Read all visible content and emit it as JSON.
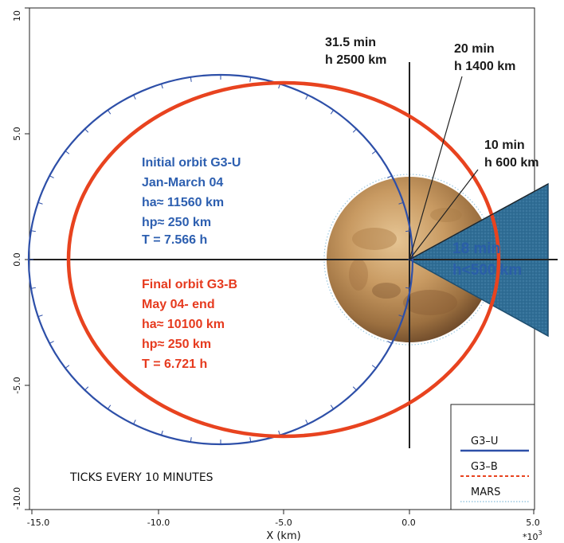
{
  "axis": {
    "x_label": "X (km)",
    "x_multiplier": "*10",
    "x_multiplier_exp": "3",
    "x_ticks": [
      "-15.0",
      "-10.0",
      "-5.0",
      "0.0",
      "5.0"
    ],
    "y_ticks": [
      "10",
      "5.0",
      "0.0",
      "-5.0",
      "-10.0"
    ]
  },
  "annotations": {
    "a31_line1": "31.5 min",
    "a31_line2": "h 2500 km",
    "a20_line1": "20 min",
    "a20_line2": "h 1400 km",
    "a10_line1": "10 min",
    "a10_line2": "h 600 km",
    "cone_line1": "18 min",
    "cone_line2": "h<500 km"
  },
  "initial_orbit": {
    "line1": "Initial orbit G3-U",
    "line2": "Jan-March 04",
    "line3": "ha≈ 11560 km",
    "line4": "hp≈ 250 km",
    "line5": "T  = 7.566 h"
  },
  "final_orbit": {
    "line1": "Final orbit G3-B",
    "line2": "May 04- end",
    "line3": "ha≈ 10100 km",
    "line4": "hp≈ 250 km",
    "line5": "T  = 6.721 h"
  },
  "ticks_note": "TICKS EVERY 10 MINUTES",
  "legend": {
    "items": [
      {
        "label": "G3–U",
        "color": "#2d4fa8",
        "style": "solid"
      },
      {
        "label": "G3–B",
        "color": "#e8431f",
        "style": "dashed"
      },
      {
        "label": "MARS",
        "color": "#9ac7e0",
        "style": "dotted"
      }
    ]
  },
  "colors": {
    "g3u_orbit": "#2d4fa8",
    "g3b_orbit": "#e8431f",
    "cone_fill": "#2f6d95",
    "mars_dark": "#6e4a2a",
    "mars_light": "#d9b27c"
  }
}
